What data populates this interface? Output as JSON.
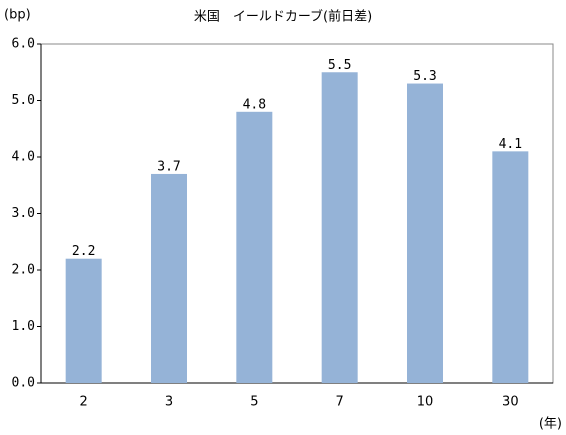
{
  "chart_data": {
    "type": "bar",
    "title": "米国　イールドカーブ(前日差)",
    "y_label": "(bp)",
    "x_label": "(年)",
    "categories": [
      "2",
      "3",
      "5",
      "7",
      "10",
      "30"
    ],
    "values": [
      2.2,
      3.7,
      4.8,
      5.5,
      5.3,
      4.1
    ],
    "color": "#95b3d7",
    "ylim": [
      0,
      6
    ],
    "yticks": [
      {
        "value": 0,
        "label": "0.0"
      },
      {
        "value": 1,
        "label": "1.0"
      },
      {
        "value": 2,
        "label": "2.0"
      },
      {
        "value": 3,
        "label": "3.0"
      },
      {
        "value": 4,
        "label": "4.0"
      },
      {
        "value": 5,
        "label": "5.0"
      },
      {
        "value": 6,
        "label": "6.0"
      }
    ],
    "grid": false
  }
}
